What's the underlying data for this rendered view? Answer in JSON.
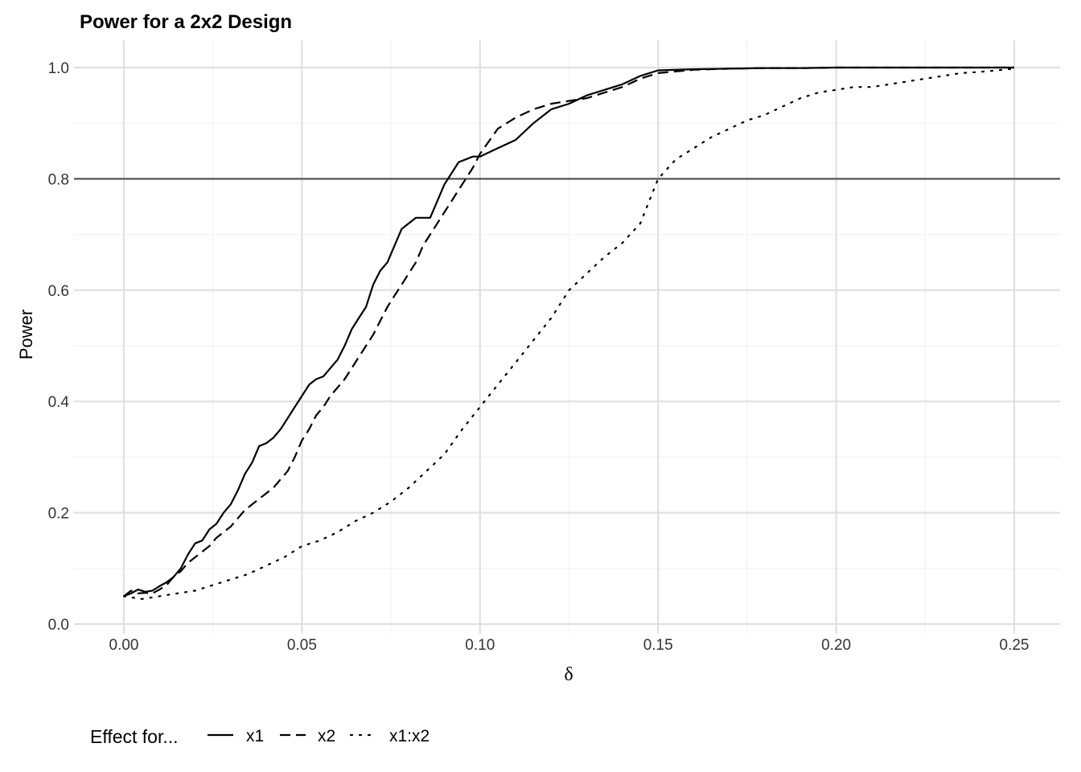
{
  "chart_data": {
    "type": "line",
    "title": "Power for a 2x2 Design",
    "xlabel": "δ",
    "ylabel": "Power",
    "xlim": [
      -0.0125,
      0.2625
    ],
    "ylim": [
      -0.01,
      1.05
    ],
    "xticks": [
      0.0,
      0.05,
      0.1,
      0.15,
      0.2,
      0.25
    ],
    "xtick_labels": [
      "0.00",
      "0.05",
      "0.10",
      "0.15",
      "0.20",
      "0.25"
    ],
    "yticks": [
      0.0,
      0.2,
      0.4,
      0.6,
      0.8,
      1.0
    ],
    "ytick_labels": [
      "0.0",
      "0.2",
      "0.4",
      "0.6",
      "0.8",
      "1.0"
    ],
    "grid": true,
    "reference_line": {
      "y": 0.8,
      "color": "#555555"
    },
    "legend": {
      "title": "Effect for...",
      "position": "bottom"
    },
    "series": [
      {
        "name": "x1",
        "dash": "solid",
        "x": [
          0.0,
          0.002,
          0.004,
          0.006,
          0.008,
          0.01,
          0.012,
          0.014,
          0.016,
          0.018,
          0.02,
          0.022,
          0.024,
          0.026,
          0.028,
          0.03,
          0.032,
          0.034,
          0.036,
          0.038,
          0.04,
          0.042,
          0.044,
          0.046,
          0.048,
          0.05,
          0.052,
          0.054,
          0.056,
          0.058,
          0.06,
          0.062,
          0.064,
          0.066,
          0.068,
          0.07,
          0.072,
          0.074,
          0.076,
          0.078,
          0.08,
          0.082,
          0.084,
          0.086,
          0.088,
          0.09,
          0.092,
          0.094,
          0.096,
          0.098,
          0.1,
          0.105,
          0.11,
          0.115,
          0.12,
          0.125,
          0.13,
          0.135,
          0.14,
          0.145,
          0.15,
          0.16,
          0.17,
          0.18,
          0.19,
          0.2,
          0.21,
          0.22,
          0.23,
          0.24,
          0.25
        ],
        "y": [
          0.05,
          0.055,
          0.062,
          0.058,
          0.06,
          0.068,
          0.075,
          0.085,
          0.1,
          0.125,
          0.145,
          0.15,
          0.17,
          0.18,
          0.2,
          0.215,
          0.24,
          0.27,
          0.29,
          0.32,
          0.325,
          0.335,
          0.35,
          0.37,
          0.39,
          0.41,
          0.43,
          0.44,
          0.445,
          0.46,
          0.475,
          0.5,
          0.53,
          0.55,
          0.57,
          0.61,
          0.635,
          0.65,
          0.68,
          0.71,
          0.72,
          0.73,
          0.73,
          0.73,
          0.76,
          0.79,
          0.81,
          0.83,
          0.835,
          0.84,
          0.84,
          0.855,
          0.87,
          0.9,
          0.925,
          0.935,
          0.95,
          0.96,
          0.97,
          0.985,
          0.995,
          0.997,
          0.998,
          0.999,
          0.999,
          1.0,
          1.0,
          1.0,
          1.0,
          1.0,
          1.0
        ]
      },
      {
        "name": "x2",
        "dash": "dashed",
        "x": [
          0.0,
          0.002,
          0.004,
          0.006,
          0.008,
          0.01,
          0.012,
          0.014,
          0.016,
          0.018,
          0.02,
          0.022,
          0.024,
          0.026,
          0.028,
          0.03,
          0.032,
          0.034,
          0.036,
          0.038,
          0.04,
          0.042,
          0.044,
          0.046,
          0.048,
          0.05,
          0.052,
          0.054,
          0.056,
          0.058,
          0.06,
          0.062,
          0.064,
          0.066,
          0.068,
          0.07,
          0.072,
          0.074,
          0.076,
          0.078,
          0.08,
          0.082,
          0.084,
          0.086,
          0.088,
          0.09,
          0.092,
          0.094,
          0.096,
          0.098,
          0.1,
          0.105,
          0.11,
          0.115,
          0.12,
          0.125,
          0.13,
          0.135,
          0.14,
          0.145,
          0.15,
          0.16,
          0.17,
          0.18,
          0.19,
          0.2,
          0.21,
          0.22,
          0.23,
          0.24,
          0.25
        ],
        "y": [
          0.05,
          0.06,
          0.055,
          0.056,
          0.055,
          0.062,
          0.07,
          0.085,
          0.095,
          0.11,
          0.12,
          0.13,
          0.14,
          0.155,
          0.165,
          0.175,
          0.19,
          0.205,
          0.215,
          0.225,
          0.235,
          0.245,
          0.26,
          0.275,
          0.3,
          0.33,
          0.35,
          0.375,
          0.39,
          0.41,
          0.425,
          0.44,
          0.46,
          0.48,
          0.5,
          0.52,
          0.545,
          0.57,
          0.59,
          0.61,
          0.63,
          0.65,
          0.68,
          0.7,
          0.72,
          0.74,
          0.76,
          0.78,
          0.8,
          0.82,
          0.845,
          0.89,
          0.91,
          0.925,
          0.935,
          0.94,
          0.945,
          0.955,
          0.965,
          0.98,
          0.99,
          0.996,
          0.998,
          0.999,
          0.999,
          1.0,
          1.0,
          1.0,
          1.0,
          1.0,
          1.0
        ]
      },
      {
        "name": "x1:x2",
        "dash": "dotted",
        "x": [
          0.0,
          0.005,
          0.01,
          0.015,
          0.02,
          0.025,
          0.03,
          0.035,
          0.04,
          0.045,
          0.05,
          0.055,
          0.06,
          0.065,
          0.07,
          0.075,
          0.08,
          0.085,
          0.09,
          0.095,
          0.1,
          0.105,
          0.11,
          0.115,
          0.12,
          0.125,
          0.13,
          0.135,
          0.14,
          0.145,
          0.15,
          0.155,
          0.16,
          0.165,
          0.17,
          0.175,
          0.18,
          0.185,
          0.19,
          0.195,
          0.2,
          0.205,
          0.21,
          0.215,
          0.22,
          0.225,
          0.23,
          0.235,
          0.24,
          0.245,
          0.25
        ],
        "y": [
          0.05,
          0.045,
          0.05,
          0.055,
          0.06,
          0.07,
          0.08,
          0.09,
          0.105,
          0.12,
          0.14,
          0.15,
          0.165,
          0.185,
          0.2,
          0.22,
          0.245,
          0.275,
          0.305,
          0.35,
          0.39,
          0.43,
          0.47,
          0.51,
          0.55,
          0.6,
          0.63,
          0.66,
          0.685,
          0.72,
          0.8,
          0.835,
          0.855,
          0.875,
          0.89,
          0.905,
          0.915,
          0.93,
          0.945,
          0.955,
          0.96,
          0.965,
          0.965,
          0.97,
          0.975,
          0.98,
          0.985,
          0.99,
          0.992,
          0.995,
          0.998
        ]
      }
    ]
  }
}
